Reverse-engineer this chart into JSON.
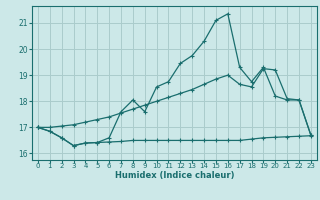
{
  "title": "",
  "xlabel": "Humidex (Indice chaleur)",
  "bg_color": "#cce8e8",
  "line_color": "#1a6e6e",
  "grid_color": "#aacccc",
  "xlim": [
    -0.5,
    23.5
  ],
  "ylim": [
    15.75,
    21.65
  ],
  "yticks": [
    16,
    17,
    18,
    19,
    20,
    21
  ],
  "xticks": [
    0,
    1,
    2,
    3,
    4,
    5,
    6,
    7,
    8,
    9,
    10,
    11,
    12,
    13,
    14,
    15,
    16,
    17,
    18,
    19,
    20,
    21,
    22,
    23
  ],
  "line1_x": [
    0,
    1,
    2,
    3,
    4,
    5,
    6,
    7,
    8,
    9,
    10,
    11,
    12,
    13,
    14,
    15,
    16,
    17,
    18,
    19,
    20,
    21,
    22,
    23
  ],
  "line1_y": [
    17.0,
    16.85,
    16.6,
    16.3,
    16.4,
    16.42,
    16.44,
    16.46,
    16.5,
    16.5,
    16.5,
    16.5,
    16.5,
    16.5,
    16.5,
    16.5,
    16.5,
    16.5,
    16.55,
    16.6,
    16.62,
    16.64,
    16.66,
    16.68
  ],
  "line2_x": [
    0,
    1,
    2,
    3,
    4,
    5,
    6,
    7,
    8,
    9,
    10,
    11,
    12,
    13,
    14,
    15,
    16,
    17,
    18,
    19,
    20,
    21,
    22,
    23
  ],
  "line2_y": [
    17.0,
    17.0,
    17.05,
    17.1,
    17.2,
    17.3,
    17.4,
    17.55,
    17.7,
    17.85,
    18.0,
    18.15,
    18.3,
    18.45,
    18.65,
    18.85,
    19.0,
    18.65,
    18.55,
    19.25,
    19.2,
    18.1,
    18.05,
    16.7
  ],
  "line3_x": [
    0,
    1,
    2,
    3,
    4,
    5,
    6,
    7,
    8,
    9,
    10,
    11,
    12,
    13,
    14,
    15,
    16,
    17,
    18,
    19,
    20,
    21,
    22,
    23
  ],
  "line3_y": [
    17.0,
    16.85,
    16.6,
    16.3,
    16.4,
    16.42,
    16.6,
    17.6,
    18.05,
    17.6,
    18.55,
    18.75,
    19.45,
    19.75,
    20.3,
    21.1,
    21.35,
    19.3,
    18.75,
    19.3,
    18.2,
    18.05,
    18.05,
    16.7
  ]
}
